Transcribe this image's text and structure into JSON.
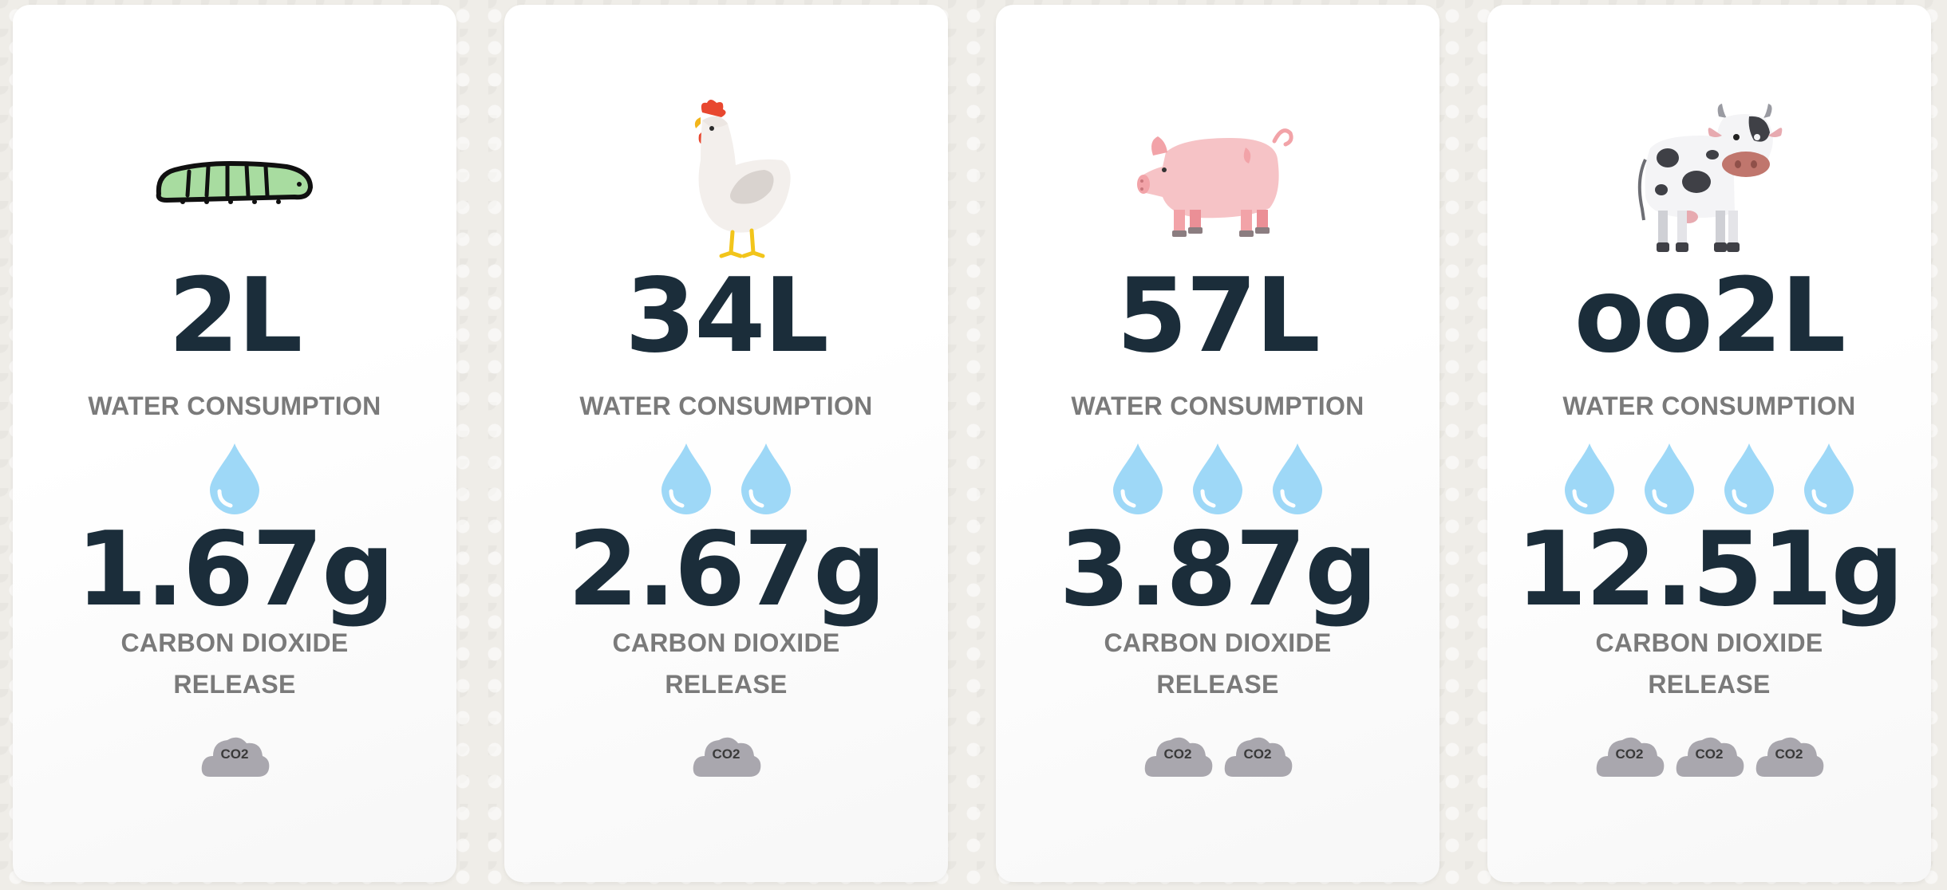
{
  "colors": {
    "number": "#1b2d3a",
    "label": "#7a7a7a",
    "drop": "#9ed8f7",
    "cloud": "#a9a7ae"
  },
  "cards": [
    {
      "animal_icon": "caterpillar-icon",
      "water_value": "2L",
      "water_label": "WATER CONSUMPTION",
      "water_drops": 1,
      "co2_value": "1.67g",
      "co2_label": "CARBON DIOXIDE RELEASE",
      "co2_clouds": 1,
      "cloud_text": "CO2"
    },
    {
      "animal_icon": "chicken-icon",
      "water_value": "34L",
      "water_label": "WATER CONSUMPTION",
      "water_drops": 2,
      "co2_value": "2.67g",
      "co2_label": "CARBON DIOXIDE RELEASE",
      "co2_clouds": 1,
      "cloud_text": "CO2"
    },
    {
      "animal_icon": "pig-icon",
      "water_value": "57L",
      "water_label": "WATER CONSUMPTION",
      "water_drops": 3,
      "co2_value": "3.87g",
      "co2_label": "CARBON DIOXIDE RELEASE",
      "co2_clouds": 2,
      "cloud_text": "CO2"
    },
    {
      "animal_icon": "cow-icon",
      "water_value": "oo2L",
      "water_label": "WATER CONSUMPTION",
      "water_drops": 4,
      "co2_value": "12.51g",
      "co2_label": "CARBON DIOXIDE RELEASE",
      "co2_clouds": 3,
      "cloud_text": "CO2"
    }
  ]
}
